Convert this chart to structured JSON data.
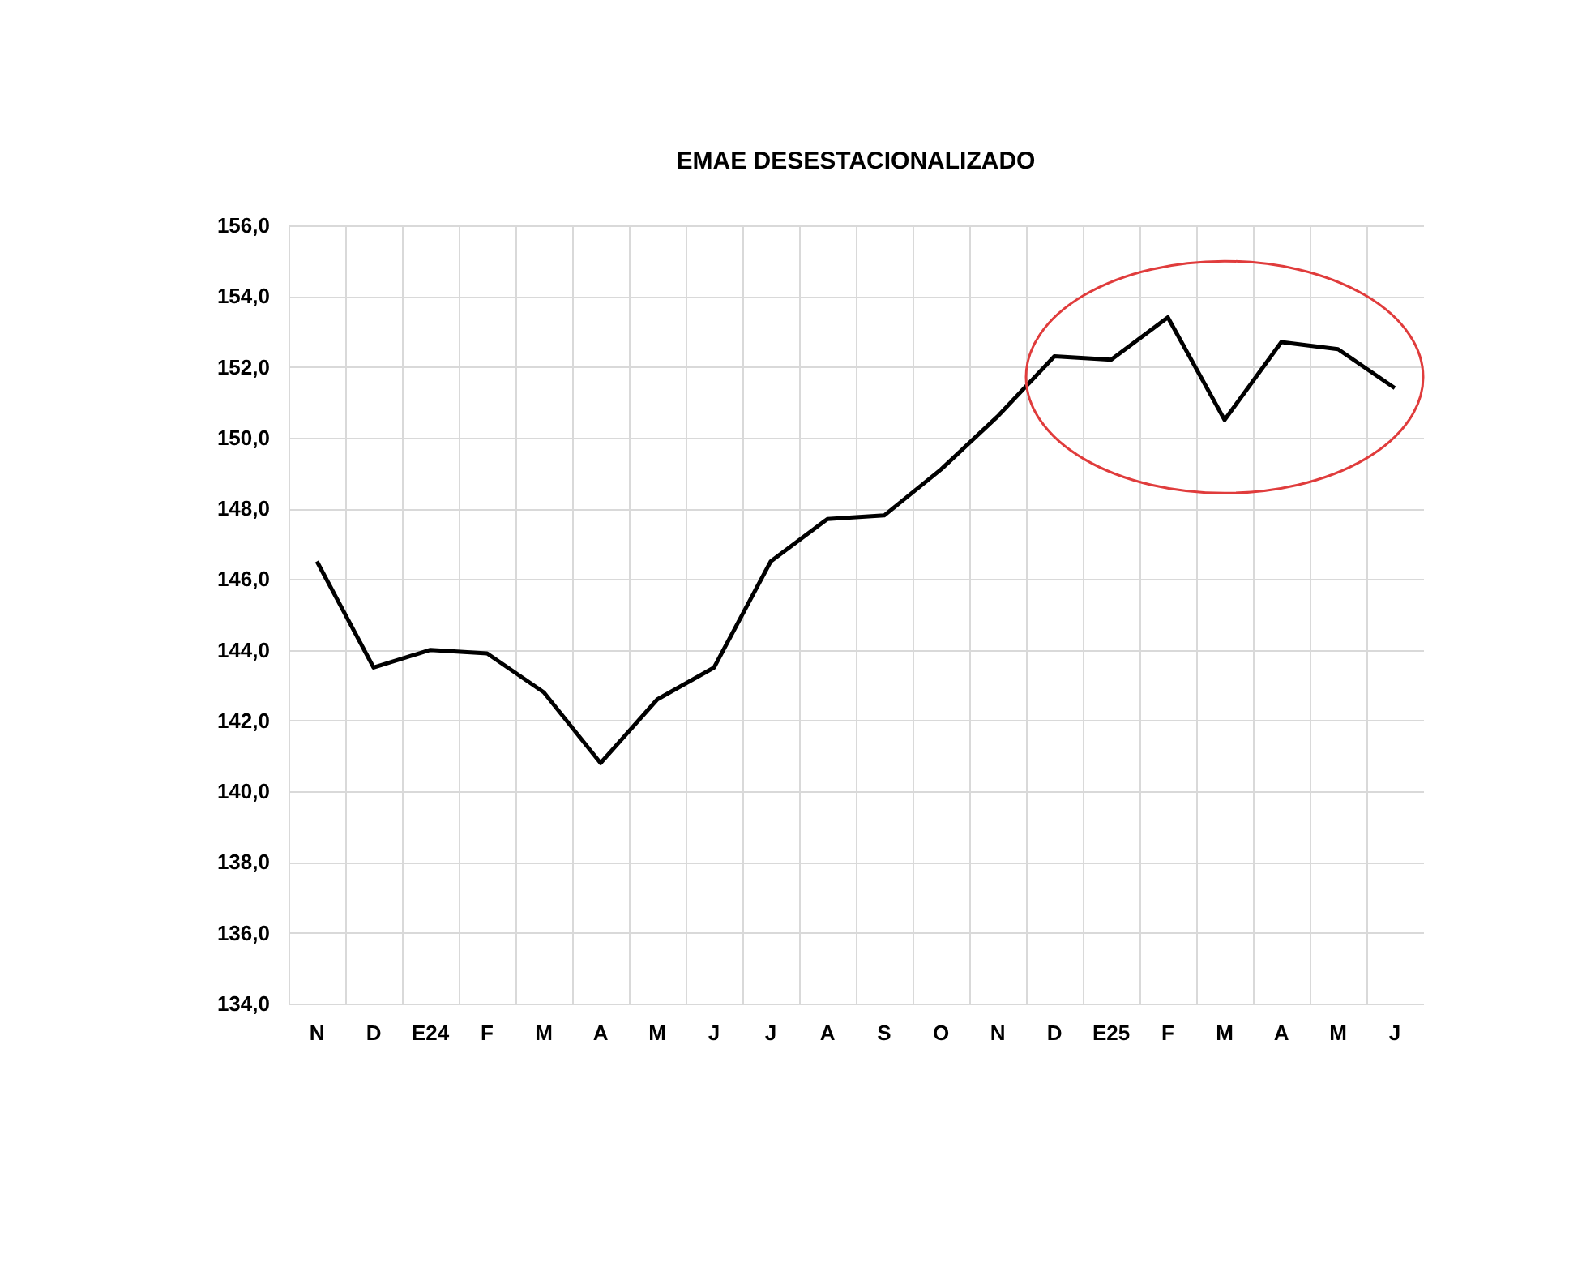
{
  "chart_data": {
    "type": "line",
    "title": "EMAE DESESTACIONALIZADO",
    "categories": [
      "N",
      "D",
      "E24",
      "F",
      "M",
      "A",
      "M",
      "J",
      "J",
      "A",
      "S",
      "O",
      "N",
      "D",
      "E25",
      "F",
      "M",
      "A",
      "M",
      "J"
    ],
    "series": [
      {
        "color": "#000000",
        "values": [
          146.5,
          143.5,
          144.0,
          143.9,
          142.8,
          140.8,
          142.6,
          143.5,
          146.5,
          147.7,
          147.8,
          149.1,
          150.6,
          152.3,
          152.2,
          153.4,
          150.5,
          152.7,
          152.5,
          151.4
        ]
      }
    ],
    "ylim": [
      134,
      156
    ],
    "yticks": [
      {
        "value": 134,
        "label": "134,0"
      },
      {
        "value": 136,
        "label": "136,0"
      },
      {
        "value": 138,
        "label": "138,0"
      },
      {
        "value": 140,
        "label": "140,0"
      },
      {
        "value": 142,
        "label": "142,0"
      },
      {
        "value": 144,
        "label": "144,0"
      },
      {
        "value": 146,
        "label": "146,0"
      },
      {
        "value": 148,
        "label": "148,0"
      },
      {
        "value": 150,
        "label": "150,0"
      },
      {
        "value": 152,
        "label": "152,0"
      },
      {
        "value": 154,
        "label": "154,0"
      },
      {
        "value": 156,
        "label": "156,0"
      }
    ],
    "grid": true,
    "marker": "none",
    "line_style": "solid"
  }
}
